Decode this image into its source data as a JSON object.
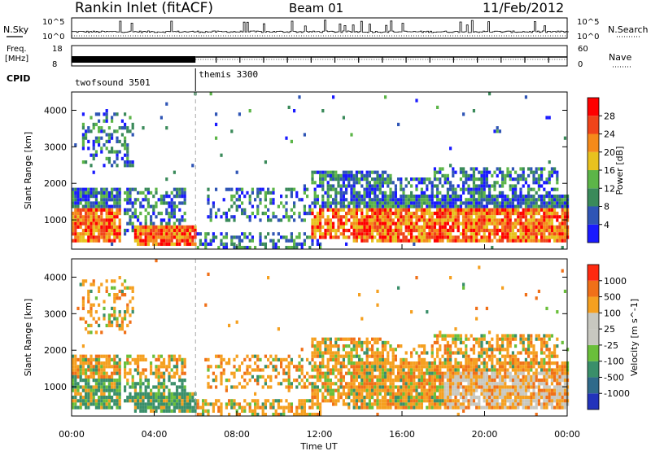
{
  "header": {
    "title": "Rankin Inlet (fitACF)",
    "beam": "Beam 01",
    "date": "11/Feb/2012"
  },
  "labels": {
    "nsky": "N.Sky",
    "nsearch": "N.Search",
    "freq_line1": "Freq.",
    "freq_line2": "[MHz]",
    "nave": "Nave",
    "cpid": "CPID"
  },
  "noise_axis": {
    "left_top": "10^5",
    "left_bottom": "10^0",
    "right_top": "10^5",
    "right_bottom": "10^0"
  },
  "freq_axis": {
    "left_top": "18",
    "left_bottom": "8",
    "right_top": "60",
    "right_bottom": "0"
  },
  "cpid_segments": [
    {
      "name": "twofsound 3501",
      "start_hour": 0,
      "end_hour": 6.0
    },
    {
      "name": "themis 3300",
      "start_hour": 6.0,
      "end_hour": 24.0
    }
  ],
  "chart_data": [
    {
      "type": "heatmap",
      "panel": "power",
      "ylabel": "Slant Range [km]",
      "ylim": [
        200,
        4500
      ],
      "yticks": [
        1000,
        2000,
        3000,
        4000
      ],
      "xlim": [
        0,
        24
      ],
      "colorbar": {
        "label": "Power [dB]",
        "ticks": [
          "4",
          "8",
          "12",
          "16",
          "20",
          "24",
          "28"
        ],
        "colors": [
          "#1a1aff",
          "#2f55b5",
          "#3a8a5a",
          "#5cb548",
          "#e8c21e",
          "#f58a1a",
          "#f0441a",
          "#ff0000"
        ]
      }
    },
    {
      "type": "heatmap",
      "panel": "velocity",
      "ylabel": "Slant Range [km]",
      "ylim": [
        200,
        4500
      ],
      "yticks": [
        1000,
        2000,
        3000,
        4000
      ],
      "xlim": [
        0,
        24
      ],
      "xlabel": "Time UT",
      "xticks": [
        "00:00",
        "04:00",
        "08:00",
        "12:00",
        "16:00",
        "20:00",
        "00:00"
      ],
      "colorbar": {
        "label": "Velocity [m s^-1]",
        "ticks": [
          "1000",
          "500",
          "100",
          "25",
          "-25",
          "-100",
          "-500",
          "-1000"
        ],
        "colors": [
          "#2233bb",
          "#2f6a8a",
          "#3a8f6a",
          "#6abf3a",
          "#c8c8c0",
          "#c8c8c0",
          "#f5a020",
          "#f07018",
          "#ff2a10"
        ]
      }
    }
  ]
}
